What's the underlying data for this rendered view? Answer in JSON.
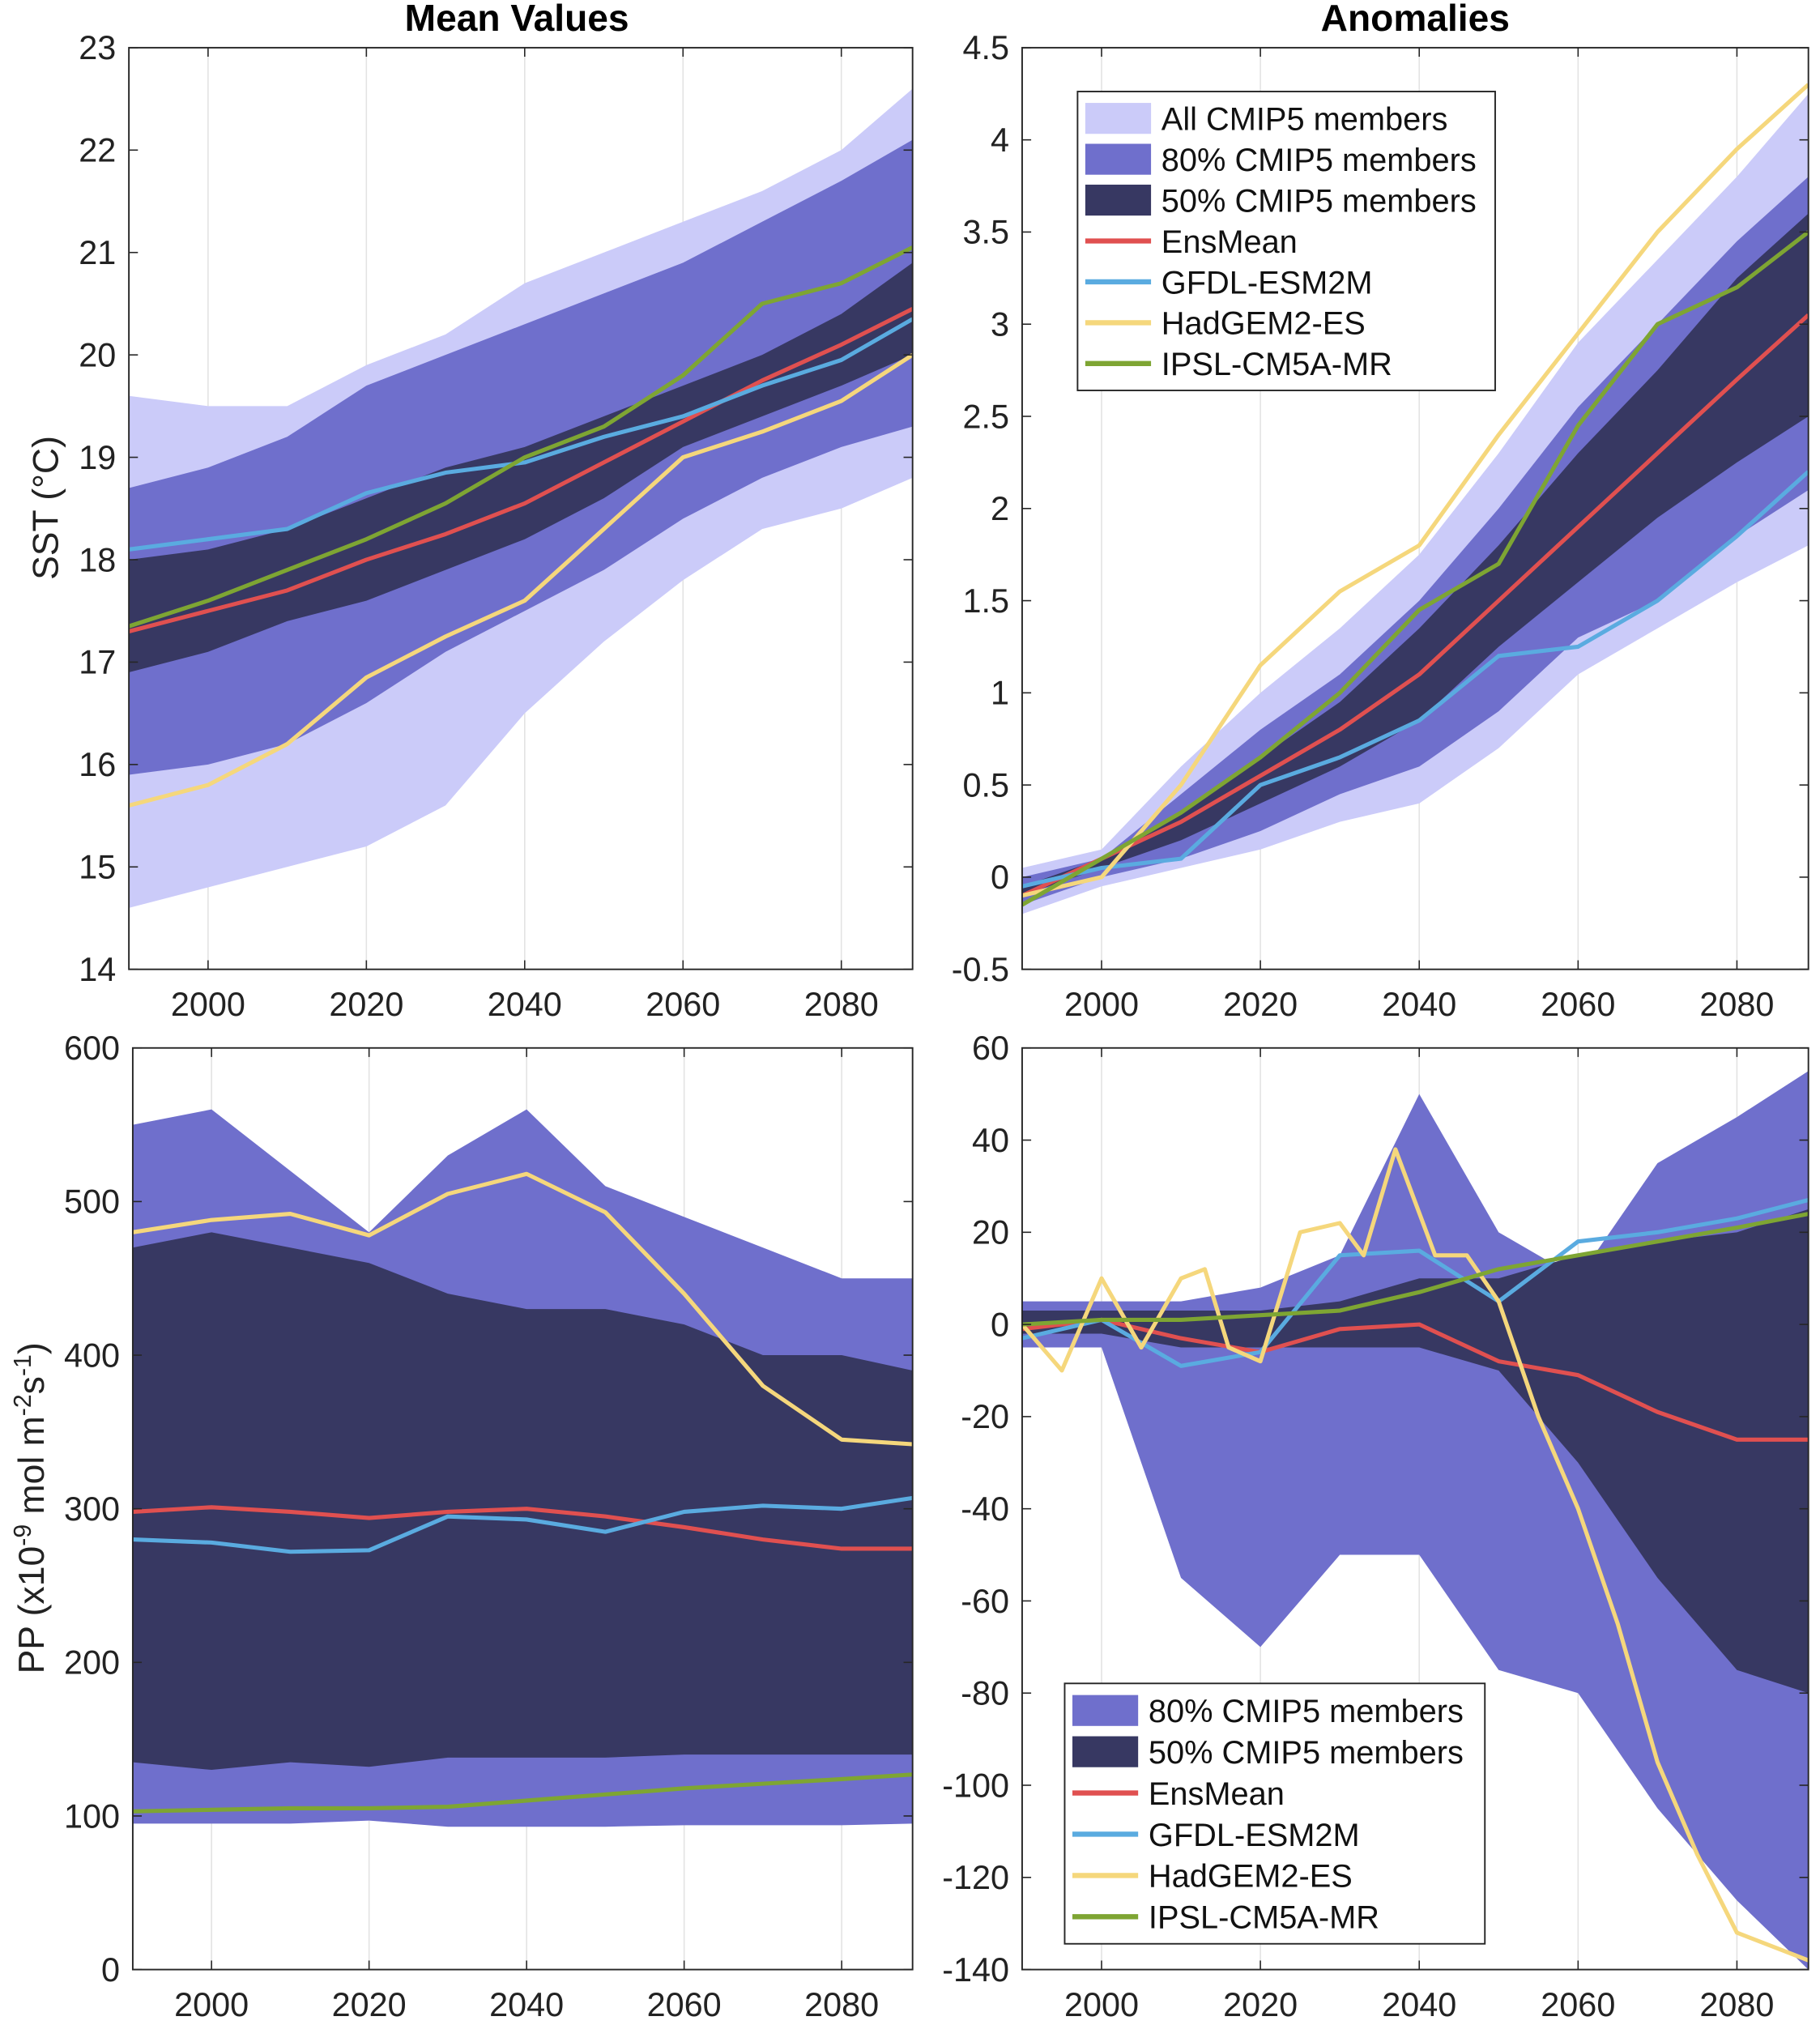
{
  "titles": {
    "left": "Mean Values",
    "right": "Anomalies"
  },
  "colors": {
    "all": "#cbcbf9",
    "p80": "#6f6fcc",
    "p50": "#373862",
    "EnsMean": "#e05050",
    "GFDL-ESM2M": "#5aabe0",
    "HadGEM2-ES": "#f5d77c",
    "IPSL-CM5A-MR": "#7ea533"
  },
  "chart_data": [
    {
      "id": "sst-mean",
      "type": "area",
      "title": "Mean Values",
      "ylabel": "SST (°C)",
      "xlabel": "",
      "xlim": [
        1990,
        2089
      ],
      "ylim": [
        14,
        23
      ],
      "xticks": [
        2000,
        2020,
        2040,
        2060,
        2080
      ],
      "yticks": [
        14,
        15,
        16,
        17,
        18,
        19,
        20,
        21,
        22,
        23
      ],
      "grid": "vertical",
      "x": [
        1990,
        2000,
        2010,
        2020,
        2030,
        2040,
        2050,
        2060,
        2070,
        2080,
        2089
      ],
      "bands": [
        {
          "name": "All CMIP5 members",
          "color_key": "all",
          "lower": [
            14.6,
            14.8,
            15.0,
            15.2,
            15.6,
            16.5,
            17.2,
            17.8,
            18.3,
            18.5,
            18.8
          ],
          "upper": [
            19.6,
            19.5,
            19.5,
            19.9,
            20.2,
            20.7,
            21.0,
            21.3,
            21.6,
            22.0,
            22.6
          ]
        },
        {
          "name": "80% CMIP5 members",
          "color_key": "p80",
          "lower": [
            15.9,
            16.0,
            16.2,
            16.6,
            17.1,
            17.5,
            17.9,
            18.4,
            18.8,
            19.1,
            19.3
          ],
          "upper": [
            18.7,
            18.9,
            19.2,
            19.7,
            20.0,
            20.3,
            20.6,
            20.9,
            21.3,
            21.7,
            22.1
          ]
        },
        {
          "name": "50% CMIP5 members",
          "color_key": "p50",
          "lower": [
            16.9,
            17.1,
            17.4,
            17.6,
            17.9,
            18.2,
            18.6,
            19.1,
            19.4,
            19.7,
            20.0
          ],
          "upper": [
            18.0,
            18.1,
            18.3,
            18.6,
            18.9,
            19.1,
            19.4,
            19.7,
            20.0,
            20.4,
            20.9
          ]
        }
      ],
      "series": [
        {
          "name": "EnsMean",
          "values": [
            17.3,
            17.5,
            17.7,
            18.0,
            18.25,
            18.55,
            18.95,
            19.35,
            19.75,
            20.1,
            20.45
          ]
        },
        {
          "name": "GFDL-ESM2M",
          "values": [
            18.1,
            18.2,
            18.3,
            18.65,
            18.85,
            18.95,
            19.2,
            19.4,
            19.7,
            19.95,
            20.35
          ]
        },
        {
          "name": "HadGEM2-ES",
          "values": [
            15.6,
            15.8,
            16.2,
            16.85,
            17.25,
            17.6,
            18.3,
            19.0,
            19.25,
            19.55,
            20.0
          ]
        },
        {
          "name": "IPSL-CM5A-MR",
          "values": [
            17.35,
            17.6,
            17.9,
            18.2,
            18.55,
            19.0,
            19.3,
            19.8,
            20.5,
            20.7,
            21.05
          ]
        }
      ]
    },
    {
      "id": "sst-anom",
      "type": "area",
      "title": "Anomalies",
      "ylabel": "",
      "xlabel": "",
      "xlim": [
        1990,
        2089
      ],
      "ylim": [
        -0.5,
        4.5
      ],
      "xticks": [
        2000,
        2020,
        2040,
        2060,
        2080
      ],
      "yticks": [
        -0.5,
        0,
        0.5,
        1,
        1.5,
        2,
        2.5,
        3,
        3.5,
        4,
        4.5
      ],
      "grid": "vertical",
      "legend": "top-left",
      "x": [
        1990,
        2000,
        2010,
        2020,
        2030,
        2040,
        2050,
        2060,
        2070,
        2080,
        2089
      ],
      "bands": [
        {
          "name": "All CMIP5 members",
          "color_key": "all",
          "lower": [
            -0.2,
            -0.05,
            0.05,
            0.15,
            0.3,
            0.4,
            0.7,
            1.1,
            1.35,
            1.6,
            1.8
          ],
          "upper": [
            0.05,
            0.15,
            0.6,
            1.0,
            1.35,
            1.75,
            2.3,
            2.9,
            3.35,
            3.8,
            4.25
          ]
        },
        {
          "name": "80% CMIP5 members",
          "color_key": "p80",
          "lower": [
            -0.15,
            0.0,
            0.1,
            0.25,
            0.45,
            0.6,
            0.9,
            1.3,
            1.5,
            1.85,
            2.1
          ],
          "upper": [
            0.0,
            0.1,
            0.45,
            0.8,
            1.1,
            1.5,
            2.0,
            2.55,
            3.0,
            3.45,
            3.8
          ]
        },
        {
          "name": "50% CMIP5 members",
          "color_key": "p50",
          "lower": [
            -0.1,
            0.05,
            0.2,
            0.4,
            0.6,
            0.85,
            1.25,
            1.6,
            1.95,
            2.25,
            2.5
          ],
          "upper": [
            -0.05,
            0.1,
            0.35,
            0.65,
            0.95,
            1.35,
            1.8,
            2.3,
            2.75,
            3.25,
            3.6
          ]
        }
      ],
      "series": [
        {
          "name": "EnsMean",
          "values": [
            -0.1,
            0.1,
            0.3,
            0.55,
            0.8,
            1.1,
            1.5,
            1.9,
            2.3,
            2.7,
            3.05
          ]
        },
        {
          "name": "GFDL-ESM2M",
          "values": [
            -0.05,
            0.05,
            0.1,
            0.5,
            0.65,
            0.85,
            1.2,
            1.25,
            1.5,
            1.85,
            2.2
          ]
        },
        {
          "name": "HadGEM2-ES",
          "values": [
            -0.1,
            0.0,
            0.5,
            1.15,
            1.55,
            1.8,
            2.4,
            2.95,
            3.5,
            3.95,
            4.3
          ]
        },
        {
          "name": "IPSL-CM5A-MR",
          "values": [
            -0.15,
            0.1,
            0.35,
            0.65,
            1.0,
            1.45,
            1.7,
            2.45,
            3.0,
            3.2,
            3.5
          ]
        }
      ],
      "legend_entries": [
        "All CMIP5 members",
        "80% CMIP5 members",
        "50% CMIP5 members",
        "EnsMean",
        "GFDL-ESM2M",
        "HadGEM2-ES",
        "IPSL-CM5A-MR"
      ]
    },
    {
      "id": "pp-mean",
      "type": "area",
      "title": "",
      "ylabel": {
        "base": "PP (x10",
        "e1": "-9",
        "mid": " mol m",
        "e2": "-2",
        "mid2": "s",
        "e3": "-1",
        "end": ")"
      },
      "xlabel": "",
      "xlim": [
        1990,
        2089
      ],
      "ylim": [
        0,
        600
      ],
      "xticks": [
        2000,
        2020,
        2040,
        2060,
        2080
      ],
      "yticks": [
        0,
        100,
        200,
        300,
        400,
        500,
        600
      ],
      "grid": "vertical",
      "x": [
        1990,
        2000,
        2010,
        2020,
        2030,
        2040,
        2050,
        2060,
        2070,
        2080,
        2089
      ],
      "bands": [
        {
          "name": "80% CMIP5 members",
          "color_key": "p80",
          "lower": [
            95,
            95,
            95,
            97,
            93,
            93,
            93,
            94,
            94,
            94,
            95
          ],
          "upper": [
            550,
            560,
            520,
            480,
            530,
            560,
            510,
            490,
            470,
            450,
            450
          ]
        },
        {
          "name": "50% CMIP5 members",
          "color_key": "p50",
          "lower": [
            135,
            130,
            135,
            132,
            138,
            138,
            138,
            140,
            140,
            140,
            140
          ],
          "upper": [
            470,
            480,
            470,
            460,
            440,
            430,
            430,
            420,
            400,
            400,
            390
          ]
        }
      ],
      "series": [
        {
          "name": "EnsMean",
          "values": [
            298,
            301,
            298,
            294,
            298,
            300,
            295,
            288,
            280,
            274,
            274
          ]
        },
        {
          "name": "GFDL-ESM2M",
          "values": [
            280,
            278,
            272,
            273,
            295,
            293,
            285,
            298,
            302,
            300,
            307
          ]
        },
        {
          "name": "HadGEM2-ES",
          "values": [
            480,
            488,
            492,
            478,
            505,
            518,
            493,
            440,
            380,
            345,
            342
          ]
        },
        {
          "name": "IPSL-CM5A-MR",
          "values": [
            103,
            104,
            105,
            105,
            106,
            110,
            114,
            118,
            121,
            124,
            127
          ]
        }
      ]
    },
    {
      "id": "pp-anom",
      "type": "area",
      "title": "",
      "ylabel": "",
      "xlabel": "",
      "xlim": [
        1990,
        2089
      ],
      "ylim": [
        -140,
        60
      ],
      "xticks": [
        2000,
        2020,
        2040,
        2060,
        2080
      ],
      "yticks": [
        -140,
        -120,
        -100,
        -80,
        -60,
        -40,
        -20,
        0,
        20,
        40,
        60
      ],
      "grid": "vertical",
      "legend": "bottom-left",
      "x": [
        1990,
        2000,
        2010,
        2020,
        2030,
        2040,
        2050,
        2060,
        2070,
        2080,
        2089
      ],
      "bands": [
        {
          "name": "80% CMIP5 members",
          "color_key": "p80",
          "lower": [
            -5,
            -5,
            -55,
            -70,
            -50,
            -50,
            -75,
            -80,
            -105,
            -125,
            -140
          ],
          "upper": [
            5,
            5,
            5,
            8,
            15,
            50,
            20,
            10,
            35,
            45,
            55
          ]
        },
        {
          "name": "50% CMIP5 members",
          "color_key": "p50",
          "lower": [
            -2,
            -2,
            -5,
            -5,
            -5,
            -5,
            -10,
            -30,
            -55,
            -75,
            -80
          ],
          "upper": [
            3,
            3,
            3,
            3,
            5,
            10,
            10,
            15,
            18,
            20,
            25
          ]
        }
      ],
      "series": [
        {
          "name": "EnsMean",
          "values": [
            -1,
            1,
            -3,
            -6,
            -1,
            0,
            -8,
            -11,
            -19,
            -25,
            -25
          ]
        },
        {
          "name": "GFDL-ESM2M",
          "values": [
            -3,
            1,
            -9,
            -6,
            15,
            16,
            5,
            18,
            20,
            23,
            27
          ]
        },
        {
          "name": "HadGEM2-ES",
          "x": [
            1990,
            1995,
            2000,
            2005,
            2010,
            2013,
            2016,
            2020,
            2025,
            2030,
            2033,
            2037,
            2042,
            2046,
            2050,
            2055,
            2060,
            2065,
            2070,
            2075,
            2080,
            2089
          ],
          "values": [
            0,
            -10,
            10,
            -5,
            10,
            12,
            -5,
            -8,
            20,
            22,
            15,
            38,
            15,
            15,
            5,
            -20,
            -40,
            -65,
            -95,
            -115,
            -132,
            -138
          ]
        },
        {
          "name": "IPSL-CM5A-MR",
          "values": [
            0,
            1,
            1,
            2,
            3,
            7,
            12,
            15,
            18,
            21,
            24
          ]
        }
      ],
      "legend_entries": [
        "80% CMIP5 members",
        "50% CMIP5 members",
        "EnsMean",
        "GFDL-ESM2M",
        "HadGEM2-ES",
        "IPSL-CM5A-MR"
      ]
    }
  ]
}
